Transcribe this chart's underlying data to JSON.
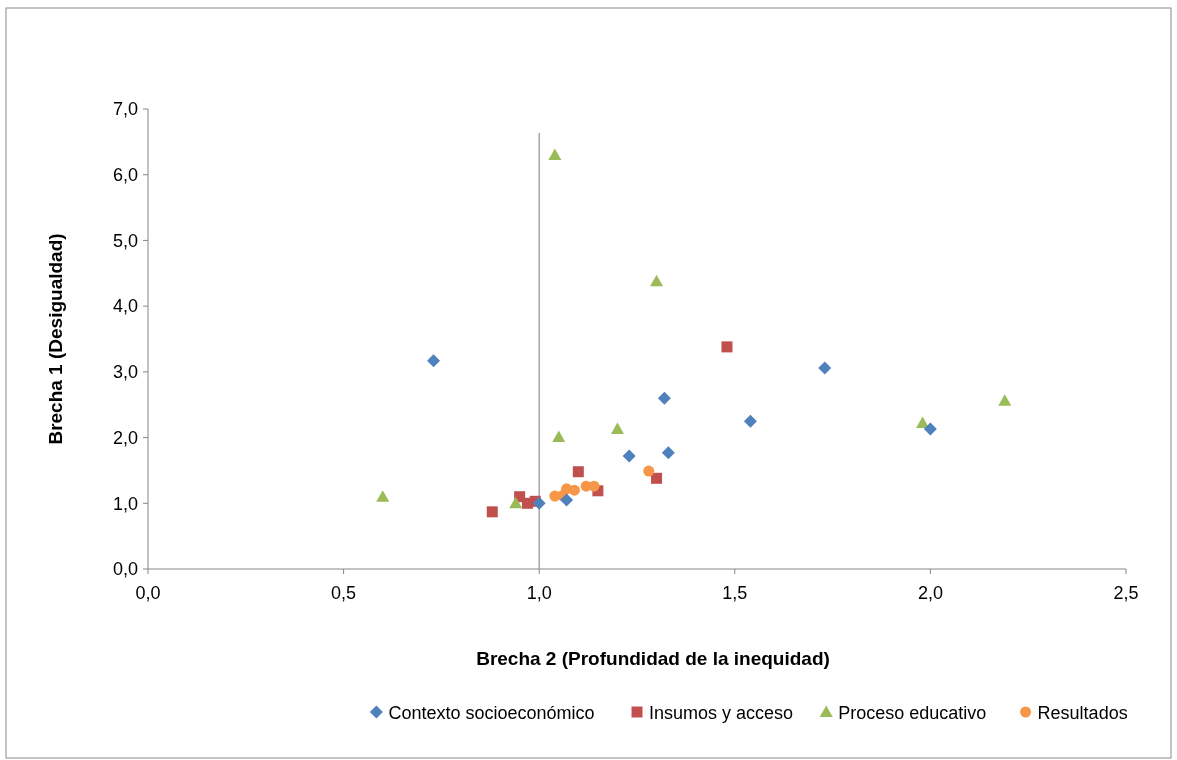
{
  "chart_data": {
    "type": "scatter",
    "xlabel": "Brecha 2 (Profundidad de la inequidad)",
    "ylabel": "Brecha 1 (Desigualdad)",
    "xlim": [
      0,
      2.5
    ],
    "xticks": [
      {
        "value": 0,
        "label": "0,0"
      },
      {
        "value": 0.5,
        "label": "0,5"
      },
      {
        "value": 1,
        "label": "1,0"
      },
      {
        "value": 1.5,
        "label": "1,5"
      },
      {
        "value": 2,
        "label": "2,0"
      },
      {
        "value": 2.5,
        "label": "2,5"
      }
    ],
    "ylim": [
      0,
      7
    ],
    "yticks": [
      {
        "value": 0,
        "label": "0,0"
      },
      {
        "value": 1,
        "label": "1,0"
      },
      {
        "value": 2,
        "label": "2,0"
      },
      {
        "value": 3,
        "label": "3,0"
      },
      {
        "value": 4,
        "label": "4,0"
      },
      {
        "value": 5,
        "label": "5,0"
      },
      {
        "value": 6,
        "label": "6,0"
      },
      {
        "value": 7,
        "label": "7,0"
      }
    ],
    "grid": false,
    "legend": "bottom",
    "ref_lines": [
      {
        "axis": "x",
        "value": 1,
        "color": "#a6a6a6"
      }
    ],
    "series": [
      {
        "name": "Contexto socioeconómico",
        "color": "#4f81bd",
        "marker": "diamond",
        "x": [
          0.73,
          1.0,
          1.07,
          1.23,
          1.32,
          1.33,
          1.54,
          1.73,
          2.0
        ],
        "values": [
          3.17,
          1.0,
          1.05,
          1.72,
          2.6,
          1.77,
          2.25,
          3.06,
          2.13
        ]
      },
      {
        "name": "Insumos y acceso",
        "color": "#c0504d",
        "marker": "square",
        "x": [
          0.88,
          0.95,
          0.97,
          0.99,
          1.1,
          1.15,
          1.3,
          1.48
        ],
        "values": [
          0.87,
          1.1,
          1.0,
          1.03,
          1.48,
          1.19,
          1.38,
          3.38
        ]
      },
      {
        "name": "Proceso educativo",
        "color": "#9bbb59",
        "marker": "triangle",
        "x": [
          0.6,
          0.94,
          1.04,
          1.05,
          1.2,
          1.3,
          1.98,
          2.19
        ],
        "values": [
          1.1,
          1.0,
          6.3,
          2.01,
          2.13,
          4.38,
          2.22,
          2.56
        ]
      },
      {
        "name": "Resultados",
        "color": "#f79646",
        "marker": "circle",
        "x": [
          1.04,
          1.06,
          1.07,
          1.09,
          1.12,
          1.14,
          1.28
        ],
        "values": [
          1.11,
          1.12,
          1.22,
          1.2,
          1.26,
          1.26,
          1.49
        ]
      }
    ]
  }
}
